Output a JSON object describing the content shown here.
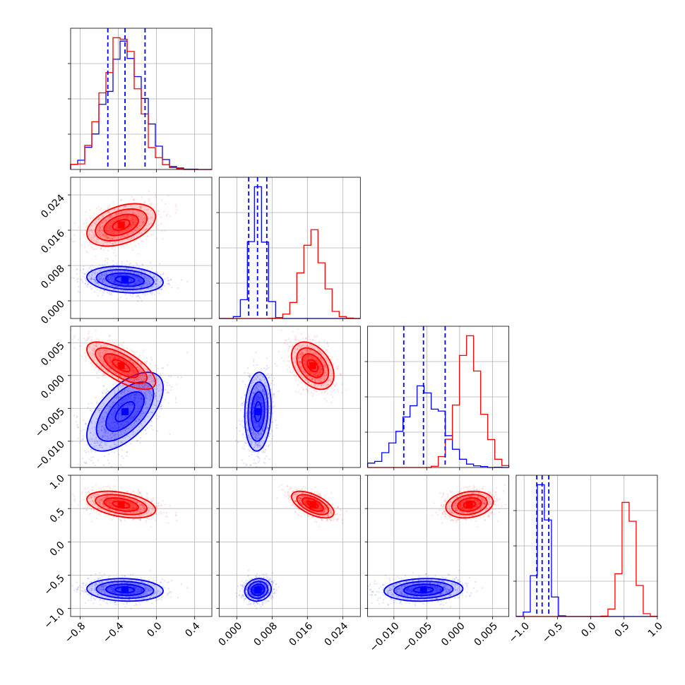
{
  "chart_data": {
    "type": "corner",
    "grid": true,
    "series": [
      {
        "color": "#0000ff",
        "points": 2200,
        "mean": [
          -0.33,
          0.0048,
          -0.0055,
          -0.72
        ],
        "sd": [
          0.2,
          0.0015,
          0.003,
          0.085
        ],
        "corr": [
          [
            1,
            -0.2,
            0.6,
            -0.1
          ],
          [
            -0.2,
            1,
            0.1,
            0.1
          ],
          [
            0.6,
            0.1,
            1,
            0.1
          ],
          [
            -0.1,
            0.1,
            0.1,
            1
          ]
        ],
        "quantiles": [
          [
            -0.51,
            -0.33,
            -0.12
          ],
          [
            0.0027,
            0.0047,
            0.0068
          ],
          [
            -0.0085,
            -0.0055,
            -0.0022
          ],
          [
            -0.81,
            -0.73,
            -0.63
          ]
        ]
      },
      {
        "color": "#ff0000",
        "points": 2200,
        "mean": [
          -0.37,
          0.0172,
          0.0015,
          0.56
        ],
        "sd": [
          0.18,
          0.0024,
          0.0018,
          0.1
        ],
        "corr": [
          [
            1,
            0.4,
            -0.7,
            -0.4
          ],
          [
            0.4,
            1,
            -0.4,
            -0.6
          ],
          [
            -0.7,
            -0.4,
            1,
            0.2
          ],
          [
            -0.4,
            -0.6,
            0.2,
            1
          ]
        ],
        "quantiles": []
      }
    ],
    "params": [
      {
        "range": [
          -0.9,
          0.58
        ],
        "ticks": [
          "-0.8",
          "-0.4",
          "0.0",
          "0.4"
        ],
        "tick_values": [
          -0.8,
          -0.4,
          0.0,
          0.4
        ]
      },
      {
        "range": [
          -0.004,
          0.028
        ],
        "ticks": [
          "0.000",
          "0.008",
          "0.016",
          "0.024"
        ],
        "tick_values": [
          0.0,
          0.008,
          0.016,
          0.024
        ]
      },
      {
        "range": [
          -0.014,
          0.0075
        ],
        "ticks": [
          "-0.010",
          "-0.005",
          "0.000",
          "0.005"
        ],
        "tick_values": [
          -0.01,
          -0.005,
          0.0,
          0.005
        ]
      },
      {
        "range": [
          -1.12,
          1.0
        ],
        "ticks": [
          "-1.0",
          "-0.5",
          "0.0",
          "0.5",
          "1.0"
        ],
        "tick_values": [
          -1.0,
          -0.5,
          0.0,
          0.5,
          1.0
        ]
      }
    ],
    "xlabels": [
      "",
      "",
      "",
      ""
    ],
    "ylabels": [
      "",
      "",
      "",
      ""
    ]
  }
}
